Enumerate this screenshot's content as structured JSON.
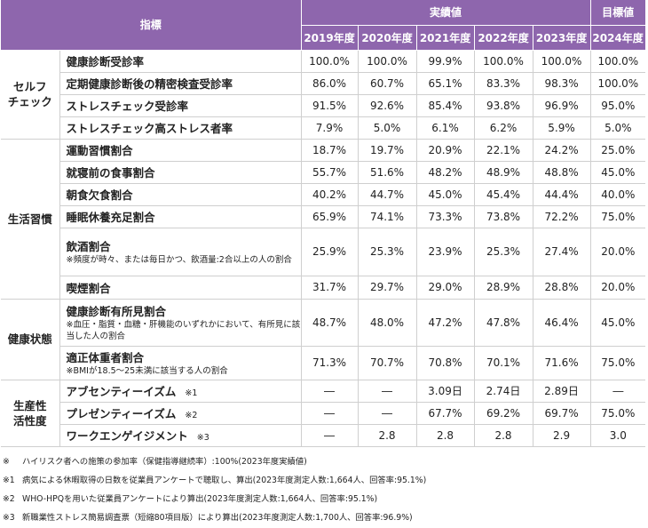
{
  "header": {
    "indicator": "指標",
    "actual": "実績値",
    "target": "目標値",
    "years": [
      "2019年度",
      "2020年度",
      "2021年度",
      "2022年度",
      "2023年度",
      "2024年度"
    ]
  },
  "categories": {
    "selfcheck": [
      "セルフ",
      "チェック"
    ],
    "lifestyle": "生活習慣",
    "health": "健康状態",
    "productivity": [
      "生産性",
      "活性度"
    ]
  },
  "rows": [
    {
      "label": "健康診断受診率",
      "values": [
        "100.0%",
        "100.0%",
        "99.9%",
        "100.0%",
        "100.0%",
        "100.0%"
      ]
    },
    {
      "label": "定期健康診断後の精密検査受診率",
      "values": [
        "86.0%",
        "60.7%",
        "65.1%",
        "83.3%",
        "98.3%",
        "100.0%"
      ]
    },
    {
      "label": "ストレスチェック受診率",
      "values": [
        "91.5%",
        "92.6%",
        "85.4%",
        "93.8%",
        "96.9%",
        "95.0%"
      ]
    },
    {
      "label": "ストレスチェック高ストレス者率",
      "values": [
        "7.9%",
        "5.0%",
        "6.1%",
        "6.2%",
        "5.9%",
        "5.0%"
      ]
    },
    {
      "label": "運動習慣割合",
      "values": [
        "18.7%",
        "19.7%",
        "20.9%",
        "22.1%",
        "24.2%",
        "25.0%"
      ]
    },
    {
      "label": "就寝前の食事割合",
      "values": [
        "55.7%",
        "51.6%",
        "48.2%",
        "48.9%",
        "48.8%",
        "45.0%"
      ]
    },
    {
      "label": "朝食欠食割合",
      "values": [
        "40.2%",
        "44.7%",
        "45.0%",
        "45.4%",
        "44.4%",
        "40.0%"
      ]
    },
    {
      "label": "睡眠休養充足割合",
      "values": [
        "65.9%",
        "74.1%",
        "73.3%",
        "73.8%",
        "72.2%",
        "75.0%"
      ]
    },
    {
      "label": "飲酒割合",
      "note": "※頻度が時々、または毎日かつ、飲酒量:2合以上の人の割合",
      "values": [
        "25.9%",
        "25.3%",
        "23.9%",
        "25.3%",
        "27.4%",
        "20.0%"
      ]
    },
    {
      "label": "喫煙割合",
      "values": [
        "31.7%",
        "29.7%",
        "29.0%",
        "28.9%",
        "28.8%",
        "20.0%"
      ]
    },
    {
      "label": "健康診断有所見割合",
      "note": "※血圧・脂質・血糖・肝機能のいずれかにおいて、有所見に該当した人の割合",
      "values": [
        "48.7%",
        "48.0%",
        "47.2%",
        "47.8%",
        "46.4%",
        "45.0%"
      ]
    },
    {
      "label": "適正体重者割合",
      "note": "※BMIが18.5～25未満に該当する人の割合",
      "values": [
        "71.3%",
        "70.7%",
        "70.8%",
        "70.1%",
        "71.6%",
        "75.0%"
      ]
    },
    {
      "label": "アブセンティーイズム",
      "mark": "※1",
      "values": [
        "―",
        "―",
        "3.09日",
        "2.74日",
        "2.89日",
        "―"
      ]
    },
    {
      "label": "プレゼンティーイズム",
      "mark": "※2",
      "values": [
        "―",
        "―",
        "67.7%",
        "69.2%",
        "69.7%",
        "75.0%"
      ]
    },
    {
      "label": "ワークエンゲイジメント",
      "mark": "※3",
      "values": [
        "―",
        "2.8",
        "2.8",
        "2.8",
        "2.9",
        "3.0"
      ]
    }
  ],
  "notes": [
    {
      "mark": "※",
      "text": "ハイリスク者への施策の参加率（保健指導継続率）:100%(2023年度実績値)"
    },
    {
      "mark": "※1",
      "text": "病気による休暇取得の日数を従業員アンケートで聴取し、算出(2023年度測定人数:1,664人、回答率:95.1%)"
    },
    {
      "mark": "※2",
      "text": "WHO-HPQを用いた従業員アンケートにより算出(2023年度測定人数:1,664人、回答率:95.1%)"
    },
    {
      "mark": "※3",
      "text": "新職業性ストレス簡易調査票（短縮80項目版）により算出(2023年度測定人数:1,700人、回答率:96.9%)"
    }
  ]
}
